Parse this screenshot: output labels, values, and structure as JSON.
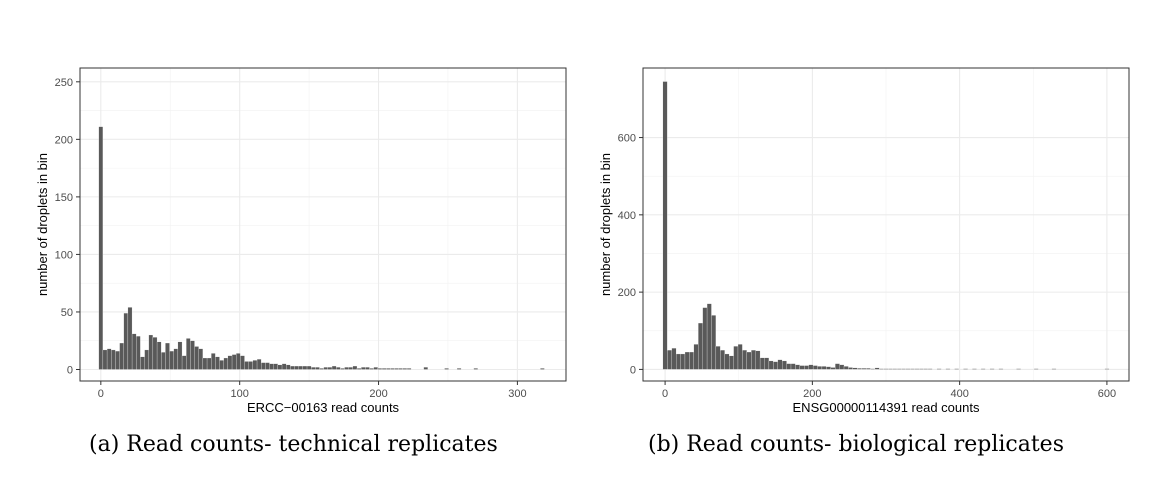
{
  "chart_data": [
    {
      "type": "bar",
      "xlabel": "ERCC−00163 read counts",
      "ylabel": "number of droplets in bin",
      "xlim": [
        -15,
        335
      ],
      "ylim": [
        -10,
        262
      ],
      "xticks": [
        0,
        100,
        200,
        300
      ],
      "yticks": [
        0,
        50,
        100,
        150,
        200,
        250
      ],
      "grid": true,
      "bin_width": 3,
      "x": [
        0,
        3,
        6,
        9,
        12,
        15,
        18,
        21,
        24,
        27,
        30,
        33,
        36,
        39,
        42,
        45,
        48,
        51,
        54,
        57,
        60,
        63,
        66,
        69,
        72,
        75,
        78,
        81,
        84,
        87,
        90,
        93,
        96,
        99,
        102,
        105,
        108,
        111,
        114,
        117,
        120,
        123,
        126,
        129,
        132,
        135,
        138,
        141,
        144,
        147,
        150,
        153,
        156,
        159,
        162,
        165,
        168,
        171,
        174,
        177,
        180,
        183,
        186,
        189,
        192,
        195,
        198,
        201,
        204,
        207,
        210,
        213,
        216,
        219,
        222,
        234,
        249,
        258,
        270,
        318
      ],
      "values": [
        211,
        17,
        18,
        17,
        16,
        23,
        49,
        54,
        31,
        29,
        11,
        17,
        30,
        28,
        24,
        15,
        23,
        16,
        18,
        24,
        12,
        27,
        25,
        20,
        18,
        10,
        10,
        14,
        11,
        8,
        10,
        12,
        13,
        14,
        12,
        7,
        7,
        8,
        9,
        6,
        6,
        5,
        5,
        4,
        5,
        4,
        3,
        3,
        3,
        3,
        3,
        2,
        2,
        1,
        2,
        2,
        3,
        2,
        1,
        2,
        2,
        3,
        1,
        2,
        2,
        1,
        2,
        1,
        1,
        1,
        1,
        1,
        1,
        1,
        1,
        2,
        1,
        1,
        1,
        1
      ]
    },
    {
      "type": "bar",
      "xlabel": "ENSG00000114391 read counts",
      "ylabel": "number of droplets in bin",
      "xlim": [
        -30,
        630
      ],
      "ylim": [
        -30,
        780
      ],
      "xticks": [
        0,
        200,
        400,
        600
      ],
      "yticks": [
        0,
        200,
        400,
        600
      ],
      "grid": true,
      "bin_width": 6,
      "x": [
        0,
        6,
        12,
        18,
        24,
        30,
        36,
        42,
        48,
        54,
        60,
        66,
        72,
        78,
        84,
        90,
        96,
        102,
        108,
        114,
        120,
        126,
        132,
        138,
        144,
        150,
        156,
        162,
        168,
        174,
        180,
        186,
        192,
        198,
        204,
        210,
        216,
        222,
        228,
        234,
        240,
        246,
        252,
        258,
        264,
        270,
        276,
        282,
        288,
        294,
        300,
        306,
        312,
        318,
        324,
        330,
        336,
        342,
        348,
        354,
        360,
        372,
        384,
        396,
        408,
        420,
        432,
        444,
        456,
        480,
        504,
        528,
        600
      ],
      "values": [
        745,
        50,
        55,
        40,
        40,
        45,
        45,
        65,
        120,
        160,
        170,
        140,
        60,
        50,
        40,
        35,
        60,
        65,
        50,
        45,
        50,
        48,
        30,
        30,
        22,
        20,
        25,
        22,
        15,
        15,
        12,
        10,
        10,
        12,
        10,
        8,
        8,
        7,
        5,
        15,
        12,
        8,
        5,
        4,
        3,
        3,
        3,
        2,
        4,
        2,
        2,
        2,
        2,
        2,
        2,
        2,
        2,
        2,
        2,
        2,
        2,
        2,
        2,
        2,
        2,
        2,
        2,
        2,
        2,
        2,
        2,
        2,
        2
      ]
    }
  ],
  "captions": [
    "(a) Read counts- technical replicates",
    "(b) Read counts- biological replicates"
  ]
}
